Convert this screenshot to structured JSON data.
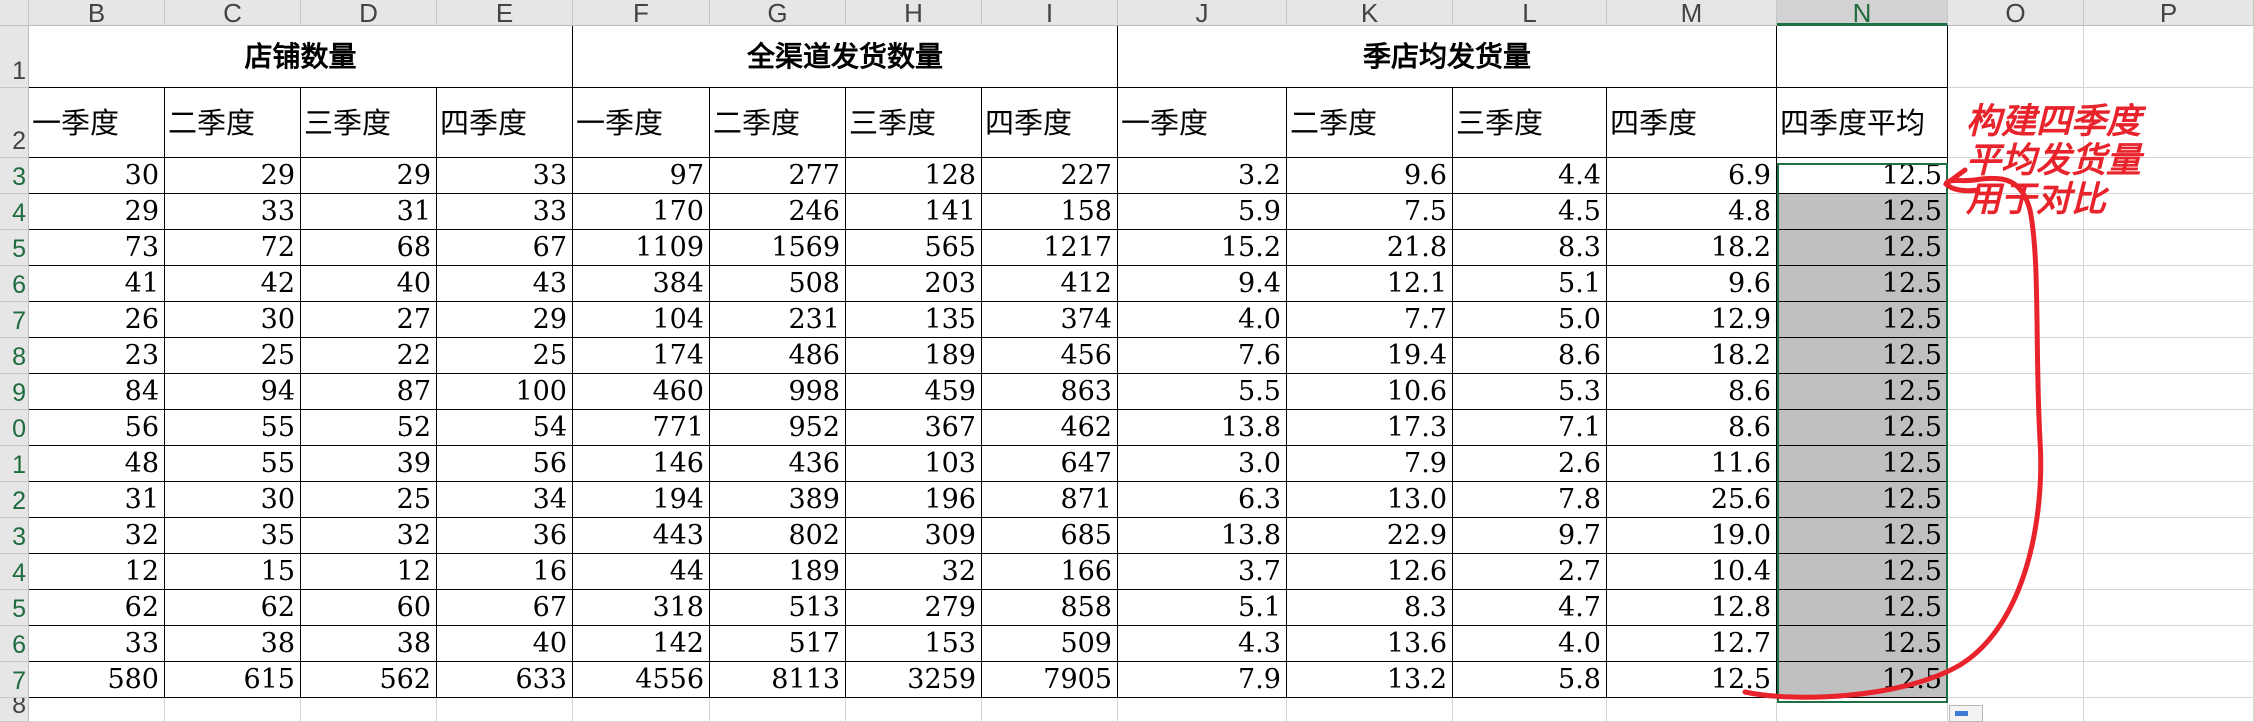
{
  "columns": [
    "B",
    "C",
    "D",
    "E",
    "F",
    "G",
    "H",
    "I",
    "J",
    "K",
    "L",
    "M",
    "N",
    "O",
    "P"
  ],
  "row_numbers": [
    "1",
    "2",
    "3",
    "4",
    "5",
    "6",
    "7",
    "8",
    "9",
    "0",
    "1",
    "2",
    "3",
    "4",
    "5",
    "6",
    "7",
    "8"
  ],
  "group_headers": {
    "store_count": "店铺数量",
    "all_channel": "全渠道发货数量",
    "per_store": "季店均发货量"
  },
  "quarter_labels": [
    "一季度",
    "二季度",
    "三季度",
    "四季度"
  ],
  "avg_header": "四季度平均",
  "rows": [
    [
      "30",
      "29",
      "29",
      "33",
      "97",
      "277",
      "128",
      "227",
      "3.2",
      "9.6",
      "4.4",
      "6.9",
      "12.5"
    ],
    [
      "29",
      "33",
      "31",
      "33",
      "170",
      "246",
      "141",
      "158",
      "5.9",
      "7.5",
      "4.5",
      "4.8",
      "12.5"
    ],
    [
      "73",
      "72",
      "68",
      "67",
      "1109",
      "1569",
      "565",
      "1217",
      "15.2",
      "21.8",
      "8.3",
      "18.2",
      "12.5"
    ],
    [
      "41",
      "42",
      "40",
      "43",
      "384",
      "508",
      "203",
      "412",
      "9.4",
      "12.1",
      "5.1",
      "9.6",
      "12.5"
    ],
    [
      "26",
      "30",
      "27",
      "29",
      "104",
      "231",
      "135",
      "374",
      "4.0",
      "7.7",
      "5.0",
      "12.9",
      "12.5"
    ],
    [
      "23",
      "25",
      "22",
      "25",
      "174",
      "486",
      "189",
      "456",
      "7.6",
      "19.4",
      "8.6",
      "18.2",
      "12.5"
    ],
    [
      "84",
      "94",
      "87",
      "100",
      "460",
      "998",
      "459",
      "863",
      "5.5",
      "10.6",
      "5.3",
      "8.6",
      "12.5"
    ],
    [
      "56",
      "55",
      "52",
      "54",
      "771",
      "952",
      "367",
      "462",
      "13.8",
      "17.3",
      "7.1",
      "8.6",
      "12.5"
    ],
    [
      "48",
      "55",
      "39",
      "56",
      "146",
      "436",
      "103",
      "647",
      "3.0",
      "7.9",
      "2.6",
      "11.6",
      "12.5"
    ],
    [
      "31",
      "30",
      "25",
      "34",
      "194",
      "389",
      "196",
      "871",
      "6.3",
      "13.0",
      "7.8",
      "25.6",
      "12.5"
    ],
    [
      "32",
      "35",
      "32",
      "36",
      "443",
      "802",
      "309",
      "685",
      "13.8",
      "22.9",
      "9.7",
      "19.0",
      "12.5"
    ],
    [
      "12",
      "15",
      "12",
      "16",
      "44",
      "189",
      "32",
      "166",
      "3.7",
      "12.6",
      "2.7",
      "10.4",
      "12.5"
    ],
    [
      "62",
      "62",
      "60",
      "67",
      "318",
      "513",
      "279",
      "858",
      "5.1",
      "8.3",
      "4.7",
      "12.8",
      "12.5"
    ],
    [
      "33",
      "38",
      "38",
      "40",
      "142",
      "517",
      "153",
      "509",
      "4.3",
      "13.6",
      "4.0",
      "12.7",
      "12.5"
    ],
    [
      "580",
      "615",
      "562",
      "633",
      "4556",
      "8113",
      "3259",
      "7905",
      "7.9",
      "13.2",
      "5.8",
      "12.5",
      "12.5"
    ]
  ],
  "annotation": [
    "构建四季度",
    "平均发货量",
    "用于对比"
  ],
  "colors": {
    "annotation": "#e8232b",
    "selection": "#1e7145",
    "selected_fill": "#c0c0c0"
  }
}
